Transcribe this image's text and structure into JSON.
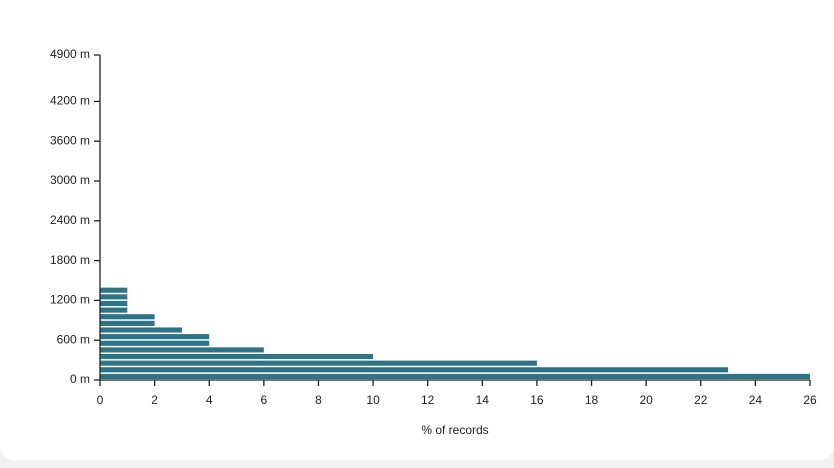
{
  "chart_data": {
    "type": "histogram",
    "orientation": "horizontal",
    "x_label": "% of records",
    "bins": [
      0,
      100,
      200,
      300,
      400,
      500,
      600,
      700,
      800,
      900,
      1000,
      1100,
      1200,
      1300,
      1400
    ],
    "values": [
      26,
      23,
      16,
      10,
      6,
      4,
      4,
      3,
      2,
      2,
      1,
      1,
      1,
      1
    ],
    "color": "#2e7486",
    "xlim": [
      0,
      26
    ],
    "xticks": [
      0,
      2,
      4,
      6,
      8,
      10,
      12,
      14,
      16,
      18,
      20,
      22,
      24,
      26
    ],
    "ylim": [
      0,
      4900
    ],
    "yticks": [
      {
        "value": 0,
        "label": "0 m"
      },
      {
        "value": 600,
        "label": "600 m"
      },
      {
        "value": 1200,
        "label": "1200 m"
      },
      {
        "value": 1800,
        "label": "1800 m"
      },
      {
        "value": 2400,
        "label": "2400 m"
      },
      {
        "value": 3000,
        "label": "3000 m"
      },
      {
        "value": 3600,
        "label": "3600 m"
      },
      {
        "value": 4200,
        "label": "4200 m"
      },
      {
        "value": 4900,
        "label": "4900 m"
      }
    ]
  }
}
